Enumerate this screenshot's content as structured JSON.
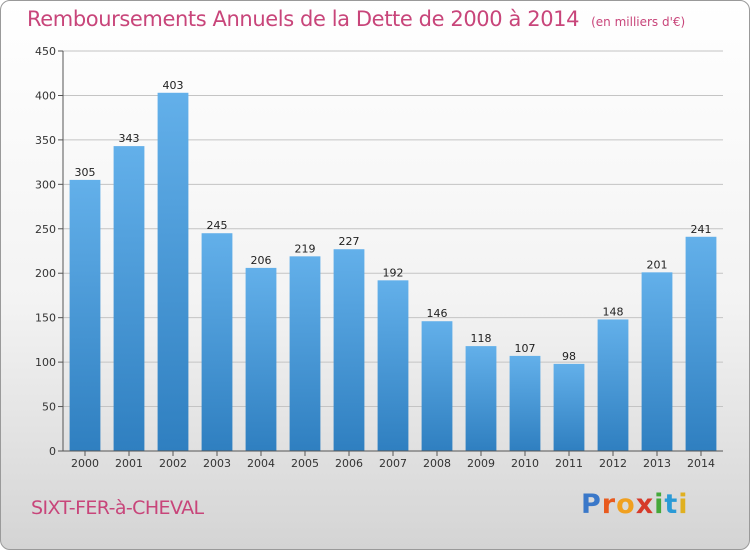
{
  "title": "Remboursements Annuels de la Dette de 2000 à 2014",
  "unit": "(en milliers d'€)",
  "place": "SIXT-FER-à-CHEVAL",
  "logo": {
    "letters": [
      "P",
      "r",
      "o",
      "x",
      "i",
      "t",
      "i"
    ],
    "colors": [
      "#3a78c9",
      "#e85a1e",
      "#f0a020",
      "#d63a2a",
      "#45a83a",
      "#2a9ad6",
      "#e0b020"
    ]
  },
  "chart_data": {
    "type": "bar",
    "categories": [
      "2000",
      "2001",
      "2002",
      "2003",
      "2004",
      "2005",
      "2006",
      "2007",
      "2008",
      "2009",
      "2010",
      "2011",
      "2012",
      "2013",
      "2014"
    ],
    "values": [
      305,
      343,
      403,
      245,
      206,
      219,
      227,
      192,
      146,
      118,
      107,
      98,
      148,
      201,
      241
    ],
    "ylim": [
      0,
      450
    ],
    "yticks": [
      0,
      50,
      100,
      150,
      200,
      250,
      300,
      350,
      400,
      450
    ],
    "grid": true,
    "bar_color_top": "#63b0ea",
    "bar_color_bottom": "#2f7fc0"
  }
}
